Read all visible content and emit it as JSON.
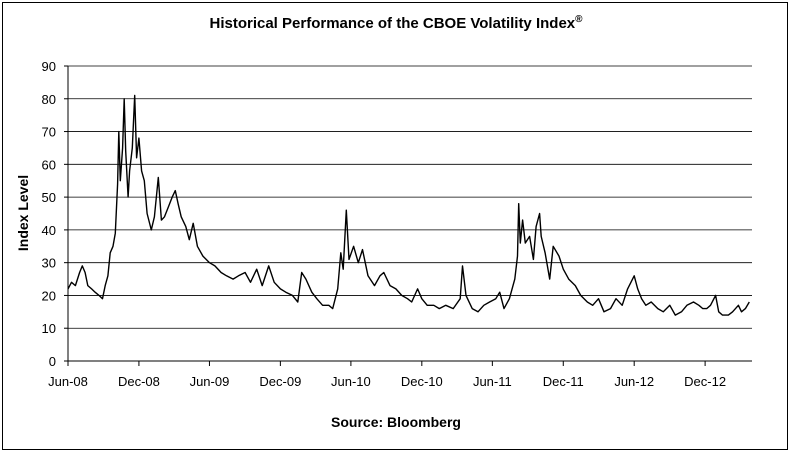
{
  "chart_data": {
    "type": "line",
    "title": "Historical Performance of the CBOE Volatility Index",
    "title_mark": "®",
    "source": "Source: Bloomberg",
    "xlabel": "",
    "ylabel": "Index Level",
    "ylim": [
      0,
      90
    ],
    "yticks": [
      "0",
      "10",
      "20",
      "30",
      "40",
      "50",
      "60",
      "70",
      "80",
      "90"
    ],
    "xticks": [
      "Jun-08",
      "Dec-08",
      "Jun-09",
      "Dec-09",
      "Jun-10",
      "Dec-10",
      "Jun-11",
      "Dec-11",
      "Jun-12",
      "Dec-12"
    ],
    "xlim": [
      "2008-06-01",
      "2013-04-01"
    ],
    "grid": true,
    "legend": "none",
    "series": [
      {
        "color": "#000000",
        "points": [
          [
            "2008-06-01",
            22
          ],
          [
            "2008-06-10",
            24
          ],
          [
            "2008-06-20",
            23
          ],
          [
            "2008-07-01",
            27
          ],
          [
            "2008-07-08",
            29
          ],
          [
            "2008-07-15",
            27
          ],
          [
            "2008-07-22",
            23
          ],
          [
            "2008-08-01",
            22
          ],
          [
            "2008-08-10",
            21
          ],
          [
            "2008-08-20",
            20
          ],
          [
            "2008-08-29",
            19
          ],
          [
            "2008-09-05",
            23
          ],
          [
            "2008-09-12",
            26
          ],
          [
            "2008-09-18",
            33
          ],
          [
            "2008-09-25",
            35
          ],
          [
            "2008-10-01",
            39
          ],
          [
            "2008-10-07",
            54
          ],
          [
            "2008-10-10",
            70
          ],
          [
            "2008-10-14",
            55
          ],
          [
            "2008-10-20",
            65
          ],
          [
            "2008-10-24",
            80
          ],
          [
            "2008-10-28",
            64
          ],
          [
            "2008-11-03",
            50
          ],
          [
            "2008-11-07",
            58
          ],
          [
            "2008-11-14",
            65
          ],
          [
            "2008-11-20",
            81
          ],
          [
            "2008-11-25",
            62
          ],
          [
            "2008-12-01",
            68
          ],
          [
            "2008-12-08",
            58
          ],
          [
            "2008-12-15",
            55
          ],
          [
            "2008-12-22",
            45
          ],
          [
            "2009-01-02",
            40
          ],
          [
            "2009-01-10",
            44
          ],
          [
            "2009-01-20",
            56
          ],
          [
            "2009-01-28",
            43
          ],
          [
            "2009-02-05",
            44
          ],
          [
            "2009-02-15",
            47
          ],
          [
            "2009-02-25",
            50
          ],
          [
            "2009-03-05",
            52
          ],
          [
            "2009-03-12",
            48
          ],
          [
            "2009-03-20",
            44
          ],
          [
            "2009-04-01",
            41
          ],
          [
            "2009-04-10",
            37
          ],
          [
            "2009-04-20",
            42
          ],
          [
            "2009-05-01",
            35
          ],
          [
            "2009-05-15",
            32
          ],
          [
            "2009-06-01",
            30
          ],
          [
            "2009-06-15",
            29
          ],
          [
            "2009-07-01",
            27
          ],
          [
            "2009-07-15",
            26
          ],
          [
            "2009-08-01",
            25
          ],
          [
            "2009-08-15",
            26
          ],
          [
            "2009-09-01",
            27
          ],
          [
            "2009-09-15",
            24
          ],
          [
            "2009-10-01",
            28
          ],
          [
            "2009-10-15",
            23
          ],
          [
            "2009-11-01",
            29
          ],
          [
            "2009-11-15",
            24
          ],
          [
            "2009-12-01",
            22
          ],
          [
            "2009-12-15",
            21
          ],
          [
            "2010-01-01",
            20
          ],
          [
            "2010-01-15",
            18
          ],
          [
            "2010-01-25",
            27
          ],
          [
            "2010-02-05",
            25
          ],
          [
            "2010-02-20",
            21
          ],
          [
            "2010-03-05",
            19
          ],
          [
            "2010-03-20",
            17
          ],
          [
            "2010-04-05",
            17
          ],
          [
            "2010-04-15",
            16
          ],
          [
            "2010-04-28",
            22
          ],
          [
            "2010-05-06",
            33
          ],
          [
            "2010-05-12",
            28
          ],
          [
            "2010-05-20",
            46
          ],
          [
            "2010-05-27",
            31
          ],
          [
            "2010-06-08",
            35
          ],
          [
            "2010-06-20",
            30
          ],
          [
            "2010-07-01",
            34
          ],
          [
            "2010-07-15",
            26
          ],
          [
            "2010-08-01",
            23
          ],
          [
            "2010-08-15",
            26
          ],
          [
            "2010-08-25",
            27
          ],
          [
            "2010-09-10",
            23
          ],
          [
            "2010-09-25",
            22
          ],
          [
            "2010-10-10",
            20
          ],
          [
            "2010-10-25",
            19
          ],
          [
            "2010-11-05",
            18
          ],
          [
            "2010-11-20",
            22
          ],
          [
            "2010-12-01",
            19
          ],
          [
            "2010-12-15",
            17
          ],
          [
            "2011-01-01",
            17
          ],
          [
            "2011-01-15",
            16
          ],
          [
            "2011-02-01",
            17
          ],
          [
            "2011-02-20",
            16
          ],
          [
            "2011-03-10",
            19
          ],
          [
            "2011-03-16",
            29
          ],
          [
            "2011-03-25",
            20
          ],
          [
            "2011-04-10",
            16
          ],
          [
            "2011-04-25",
            15
          ],
          [
            "2011-05-10",
            17
          ],
          [
            "2011-05-25",
            18
          ],
          [
            "2011-06-10",
            19
          ],
          [
            "2011-06-20",
            21
          ],
          [
            "2011-07-01",
            16
          ],
          [
            "2011-07-15",
            19
          ],
          [
            "2011-07-29",
            25
          ],
          [
            "2011-08-05",
            32
          ],
          [
            "2011-08-08",
            48
          ],
          [
            "2011-08-12",
            36
          ],
          [
            "2011-08-18",
            43
          ],
          [
            "2011-08-25",
            36
          ],
          [
            "2011-09-05",
            38
          ],
          [
            "2011-09-15",
            31
          ],
          [
            "2011-09-22",
            41
          ],
          [
            "2011-10-01",
            45
          ],
          [
            "2011-10-05",
            38
          ],
          [
            "2011-10-15",
            33
          ],
          [
            "2011-10-27",
            25
          ],
          [
            "2011-11-05",
            35
          ],
          [
            "2011-11-20",
            32
          ],
          [
            "2011-12-01",
            28
          ],
          [
            "2011-12-15",
            25
          ],
          [
            "2012-01-01",
            23
          ],
          [
            "2012-01-15",
            20
          ],
          [
            "2012-02-01",
            18
          ],
          [
            "2012-02-15",
            17
          ],
          [
            "2012-03-01",
            19
          ],
          [
            "2012-03-15",
            15
          ],
          [
            "2012-04-01",
            16
          ],
          [
            "2012-04-15",
            19
          ],
          [
            "2012-05-01",
            17
          ],
          [
            "2012-05-15",
            22
          ],
          [
            "2012-06-01",
            26
          ],
          [
            "2012-06-10",
            22
          ],
          [
            "2012-06-20",
            19
          ],
          [
            "2012-07-01",
            17
          ],
          [
            "2012-07-15",
            18
          ],
          [
            "2012-08-01",
            16
          ],
          [
            "2012-08-15",
            15
          ],
          [
            "2012-09-01",
            17
          ],
          [
            "2012-09-15",
            14
          ],
          [
            "2012-10-01",
            15
          ],
          [
            "2012-10-15",
            17
          ],
          [
            "2012-11-01",
            18
          ],
          [
            "2012-11-15",
            17
          ],
          [
            "2012-11-25",
            16
          ],
          [
            "2012-12-05",
            16
          ],
          [
            "2012-12-15",
            17
          ],
          [
            "2012-12-28",
            20
          ],
          [
            "2013-01-05",
            15
          ],
          [
            "2013-01-15",
            14
          ],
          [
            "2013-01-30",
            14
          ],
          [
            "2013-02-10",
            15
          ],
          [
            "2013-02-25",
            17
          ],
          [
            "2013-03-05",
            15
          ],
          [
            "2013-03-15",
            16
          ],
          [
            "2013-03-25",
            18
          ]
        ]
      }
    ]
  }
}
